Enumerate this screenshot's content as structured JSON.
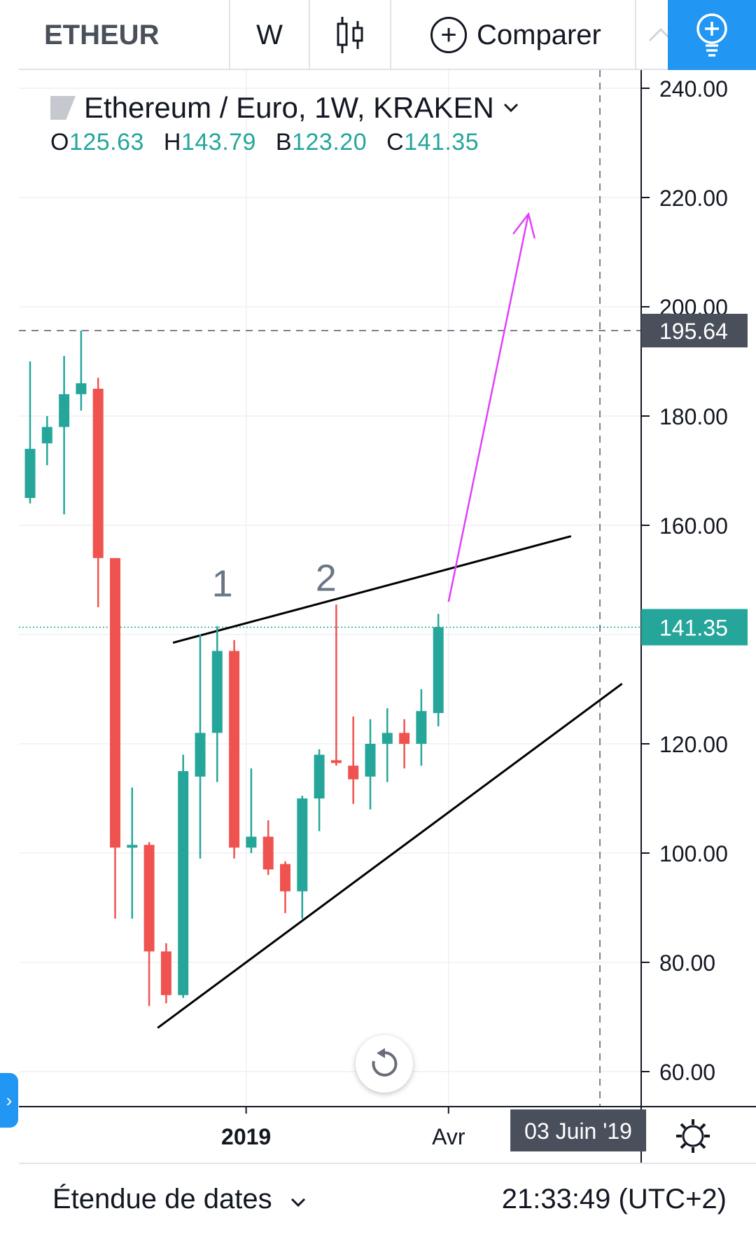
{
  "toolbar": {
    "symbol": "ETHEUR",
    "interval": "W",
    "chart_type_icon": "candles-icon",
    "compare_label": "Comparer",
    "ideas_icon": "lightbulb-plus-icon"
  },
  "legend": {
    "title": "Ethereum / Euro, 1W, KRAKEN",
    "o_key": "O",
    "o": "125.63",
    "h_key": "H",
    "h": "143.79",
    "b_key": "B",
    "b": "123.20",
    "c_key": "C",
    "c": "141.35"
  },
  "bottom": {
    "range_label": "Étendue de dates",
    "clock": "21:33:49 (UTC+2)"
  },
  "colors": {
    "up": "#26a69a",
    "down": "#ef5350",
    "accent": "#2196f3",
    "arrow": "#e040fb"
  },
  "chart_data": {
    "type": "candlestick",
    "symbol": "ETHEUR",
    "y_ticks": [
      60,
      80,
      100,
      120,
      140,
      160,
      180,
      200,
      220,
      240
    ],
    "y_tick_labels": [
      "60.00",
      "80.00",
      "100.00",
      "120.00",
      "160.00",
      "180.00",
      "200.00",
      "220.00",
      "240.00"
    ],
    "ylim": [
      54,
      242
    ],
    "x_labels": [
      {
        "label": "2019",
        "bar": 12.7,
        "bold": true
      },
      {
        "label": "Avr",
        "bar": 24.6,
        "bold": false
      }
    ],
    "crosshair": {
      "price": "195.64",
      "bar": 33.5,
      "date_label": "03 Juin '19"
    },
    "last_price": {
      "value": 141.35,
      "label": "141.35"
    },
    "candles": [
      {
        "o": 165,
        "h": 190,
        "l": 164,
        "c": 174
      },
      {
        "o": 175,
        "h": 180,
        "l": 171,
        "c": 178
      },
      {
        "o": 178,
        "h": 191,
        "l": 162,
        "c": 184
      },
      {
        "o": 184,
        "h": 195.64,
        "l": 181,
        "c": 186
      },
      {
        "o": 185,
        "h": 187,
        "l": 145,
        "c": 154
      },
      {
        "o": 154,
        "h": 154,
        "l": 88,
        "c": 101
      },
      {
        "o": 101,
        "h": 112,
        "l": 88,
        "c": 101.5
      },
      {
        "o": 101.5,
        "h": 102,
        "l": 72,
        "c": 82
      },
      {
        "o": 82,
        "h": 83.5,
        "l": 72.5,
        "c": 74
      },
      {
        "o": 74,
        "h": 118,
        "l": 73.5,
        "c": 115
      },
      {
        "o": 114,
        "h": 140,
        "l": 99,
        "c": 122
      },
      {
        "o": 122,
        "h": 141.5,
        "l": 113,
        "c": 137
      },
      {
        "o": 137,
        "h": 139,
        "l": 99,
        "c": 101
      },
      {
        "o": 101,
        "h": 115.5,
        "l": 100,
        "c": 103
      },
      {
        "o": 103,
        "h": 106,
        "l": 96,
        "c": 97
      },
      {
        "o": 98,
        "h": 98.5,
        "l": 89,
        "c": 93
      },
      {
        "o": 93,
        "h": 110.5,
        "l": 88,
        "c": 110
      },
      {
        "o": 110,
        "h": 119,
        "l": 104,
        "c": 118
      },
      {
        "o": 117,
        "h": 145.5,
        "l": 116,
        "c": 116.5
      },
      {
        "o": 116,
        "h": 125,
        "l": 109,
        "c": 113.5
      },
      {
        "o": 114,
        "h": 124.5,
        "l": 108,
        "c": 120
      },
      {
        "o": 120,
        "h": 126.5,
        "l": 113,
        "c": 122
      },
      {
        "o": 122,
        "h": 124.5,
        "l": 115.5,
        "c": 120
      },
      {
        "o": 120,
        "h": 130,
        "l": 116,
        "c": 126
      },
      {
        "o": 125.63,
        "h": 143.79,
        "l": 123.2,
        "c": 141.35
      }
    ],
    "drawings": {
      "upper_trendline": {
        "from": {
          "bar": 8.4,
          "price": 138.5
        },
        "to": {
          "bar": 31.8,
          "price": 158
        }
      },
      "lower_trendline": {
        "from": {
          "bar": 7.5,
          "price": 68
        },
        "to": {
          "bar": 34.8,
          "price": 131
        }
      },
      "arrow": {
        "from": {
          "bar": 24.6,
          "price": 146
        },
        "to": {
          "bar": 29.3,
          "price": 217
        }
      },
      "labels": [
        {
          "text": "1",
          "bar": 11.3,
          "price": 147
        },
        {
          "text": "2",
          "bar": 17.4,
          "price": 148
        }
      ]
    }
  }
}
